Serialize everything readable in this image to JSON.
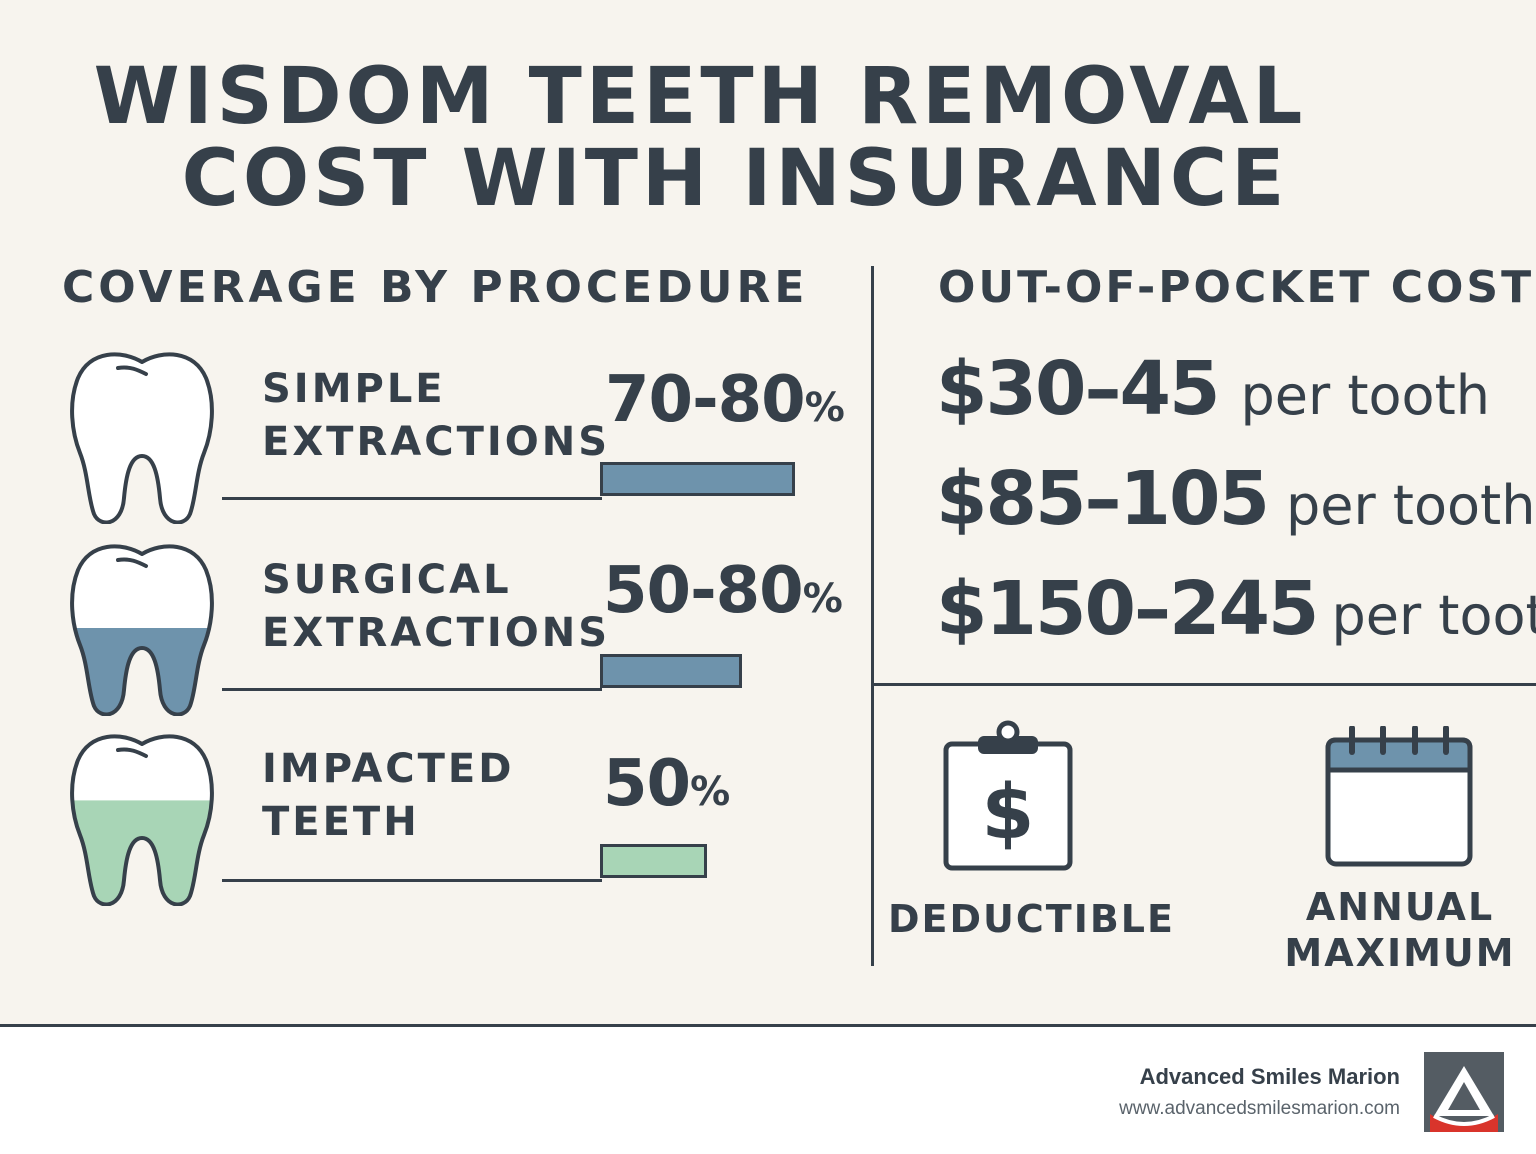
{
  "title": {
    "line1": "WISDOM TEETH REMOVAL",
    "line2": "COST WITH INSURANCE"
  },
  "coverage": {
    "heading": "COVERAGE BY PROCEDURE",
    "items": [
      {
        "label_line1": "SIMPLE",
        "label_line2": "EXTRACTIONS",
        "range": "70-80",
        "unit": "%",
        "bar_fraction": 0.8,
        "bar_color": "#6e93ac",
        "fill_color": "#ffffff",
        "fill_level": 0
      },
      {
        "label_line1": "SURGICAL",
        "label_line2": "EXTRACTIONS",
        "range": "50-80",
        "unit": "%",
        "bar_fraction": 0.58,
        "bar_color": "#6e93ac",
        "fill_color": "#6e93ac",
        "fill_level": 0.5
      },
      {
        "label_line1": "IMPACTED",
        "label_line2": "TEETH",
        "range": "50",
        "unit": "%",
        "bar_fraction": 0.44,
        "bar_color": "#a8d5b6",
        "fill_color": "#a8d5b6",
        "fill_level": 0.6
      }
    ]
  },
  "out_of_pocket": {
    "heading": "OUT-OF-POCKET COST",
    "rows": [
      {
        "amount": "$30–45",
        "unit": "per tooth"
      },
      {
        "amount": "$85–105",
        "unit": "per tooth"
      },
      {
        "amount": "$150–245",
        "unit": "per tooth"
      }
    ]
  },
  "terms": {
    "deductible": {
      "label": "DEDUCTIBLE",
      "icon": "clipboard-dollar-icon",
      "symbol": "$"
    },
    "annual_max": {
      "label_line1": "ANNUAL",
      "label_line2": "MAXIMUM",
      "icon": "calendar-icon"
    }
  },
  "footer": {
    "brand": "Advanced Smiles Marion",
    "url": "www.advancedsmilesmarion.com",
    "logo": "advanced-smiles-logo-icon"
  },
  "colors": {
    "text": "#36404a",
    "blue": "#6e93ac",
    "green": "#a8d5b6",
    "background": "#f7f4ee"
  }
}
